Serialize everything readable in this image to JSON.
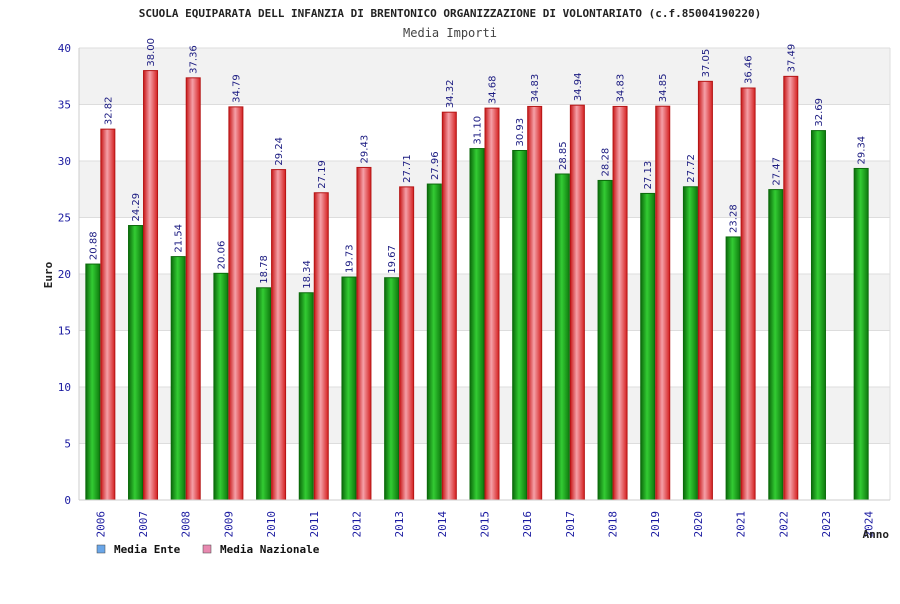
{
  "colors": {
    "ente_bar": "#22a822",
    "ente_edge": "#0b6a0b",
    "naz_bar": "#ee3b3b",
    "naz_edge": "#b51515",
    "legend_ente": "#6aa6e8",
    "legend_naz": "#e889b0",
    "band": "#f2f2f2",
    "tick_text": "#1a1aa0"
  },
  "chart_data": {
    "type": "bar",
    "title": "SCUOLA EQUIPARATA DELL INFANZIA DI BRENTONICO ORGANIZZAZIONE DI VOLONTARIATO (c.f.85004190220)",
    "subtitle": "Media Importi",
    "xlabel": "Anno",
    "ylabel": "Euro",
    "ylim": [
      0,
      40
    ],
    "yticks": [
      0,
      5,
      10,
      15,
      20,
      25,
      30,
      35,
      40
    ],
    "grid": true,
    "legend_position": "bottom-left",
    "categories": [
      "2006",
      "2007",
      "2008",
      "2009",
      "2010",
      "2011",
      "2012",
      "2013",
      "2014",
      "2015",
      "2016",
      "2017",
      "2018",
      "2019",
      "2020",
      "2021",
      "2022",
      "2023",
      "2024"
    ],
    "series": [
      {
        "name": "Media Ente",
        "values": [
          20.88,
          24.29,
          21.54,
          20.06,
          18.78,
          18.34,
          19.73,
          19.67,
          27.96,
          31.1,
          30.93,
          28.85,
          28.28,
          27.13,
          27.72,
          23.28,
          27.47,
          32.69,
          29.34
        ],
        "labels": [
          "20.88",
          "24.29",
          "21.54",
          "20.06",
          "18.78",
          "18.34",
          "19.73",
          "19.67",
          "27.96",
          "31.10",
          "30.93",
          "28.85",
          "28.28",
          "27.13",
          "27.72",
          "23.28",
          "27.47",
          "32.69",
          "29.34"
        ]
      },
      {
        "name": "Media Nazionale",
        "values": [
          32.82,
          38.0,
          37.36,
          34.79,
          29.24,
          27.19,
          29.43,
          27.71,
          34.32,
          34.68,
          34.83,
          34.94,
          34.83,
          34.85,
          37.05,
          36.46,
          37.49,
          null,
          null
        ],
        "labels": [
          "32.82",
          "38.00",
          "37.36",
          "34.79",
          "29.24",
          "27.19",
          "29.43",
          "27.71",
          "34.32",
          "34.68",
          "34.83",
          "34.94",
          "34.83",
          "34.85",
          "37.05",
          "36.46",
          "37.49",
          null,
          null
        ]
      }
    ]
  }
}
